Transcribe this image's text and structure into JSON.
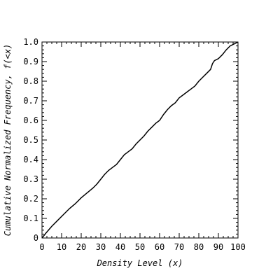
{
  "chart_data": {
    "type": "line",
    "title": "",
    "xlabel": "Density Level (x)",
    "ylabel": "Cumulative Normalized Frequency, f(<x)",
    "xlim": [
      0,
      100
    ],
    "ylim": [
      0,
      1
    ],
    "x_ticks": [
      0,
      10,
      20,
      30,
      40,
      50,
      60,
      70,
      80,
      90,
      100
    ],
    "y_ticks": [
      0,
      0.1,
      0.2,
      0.3,
      0.4,
      0.5,
      0.6,
      0.7,
      0.8,
      0.9,
      1.0
    ],
    "x_tick_labels": [
      "0",
      "10",
      "20",
      "30",
      "40",
      "50",
      "60",
      "70",
      "80",
      "90",
      "100"
    ],
    "y_tick_labels": [
      "0",
      "0.1",
      "0.2",
      "0.3",
      "0.4",
      "0.5",
      "0.6",
      "0.7",
      "0.8",
      "0.9",
      "1.0"
    ],
    "grid": false,
    "series": [
      {
        "color": "#000000",
        "x": [
          0,
          2,
          5,
          8,
          11,
          14,
          17,
          20,
          23,
          26,
          28,
          30,
          32,
          34,
          36,
          38,
          40,
          42,
          44,
          46,
          48,
          50,
          52,
          54,
          56,
          58,
          60,
          62,
          64,
          66,
          68,
          70,
          72,
          74,
          76,
          78,
          80,
          82,
          84,
          86,
          87,
          88,
          90,
          92,
          94,
          96,
          98,
          100
        ],
        "y": [
          0,
          0.025,
          0.06,
          0.09,
          0.12,
          0.15,
          0.175,
          0.205,
          0.23,
          0.255,
          0.275,
          0.3,
          0.325,
          0.345,
          0.36,
          0.375,
          0.4,
          0.425,
          0.44,
          0.455,
          0.48,
          0.5,
          0.52,
          0.545,
          0.565,
          0.585,
          0.6,
          0.63,
          0.655,
          0.675,
          0.69,
          0.715,
          0.73,
          0.745,
          0.76,
          0.775,
          0.8,
          0.82,
          0.84,
          0.86,
          0.89,
          0.905,
          0.915,
          0.935,
          0.96,
          0.98,
          0.99,
          1.0
        ]
      }
    ]
  }
}
